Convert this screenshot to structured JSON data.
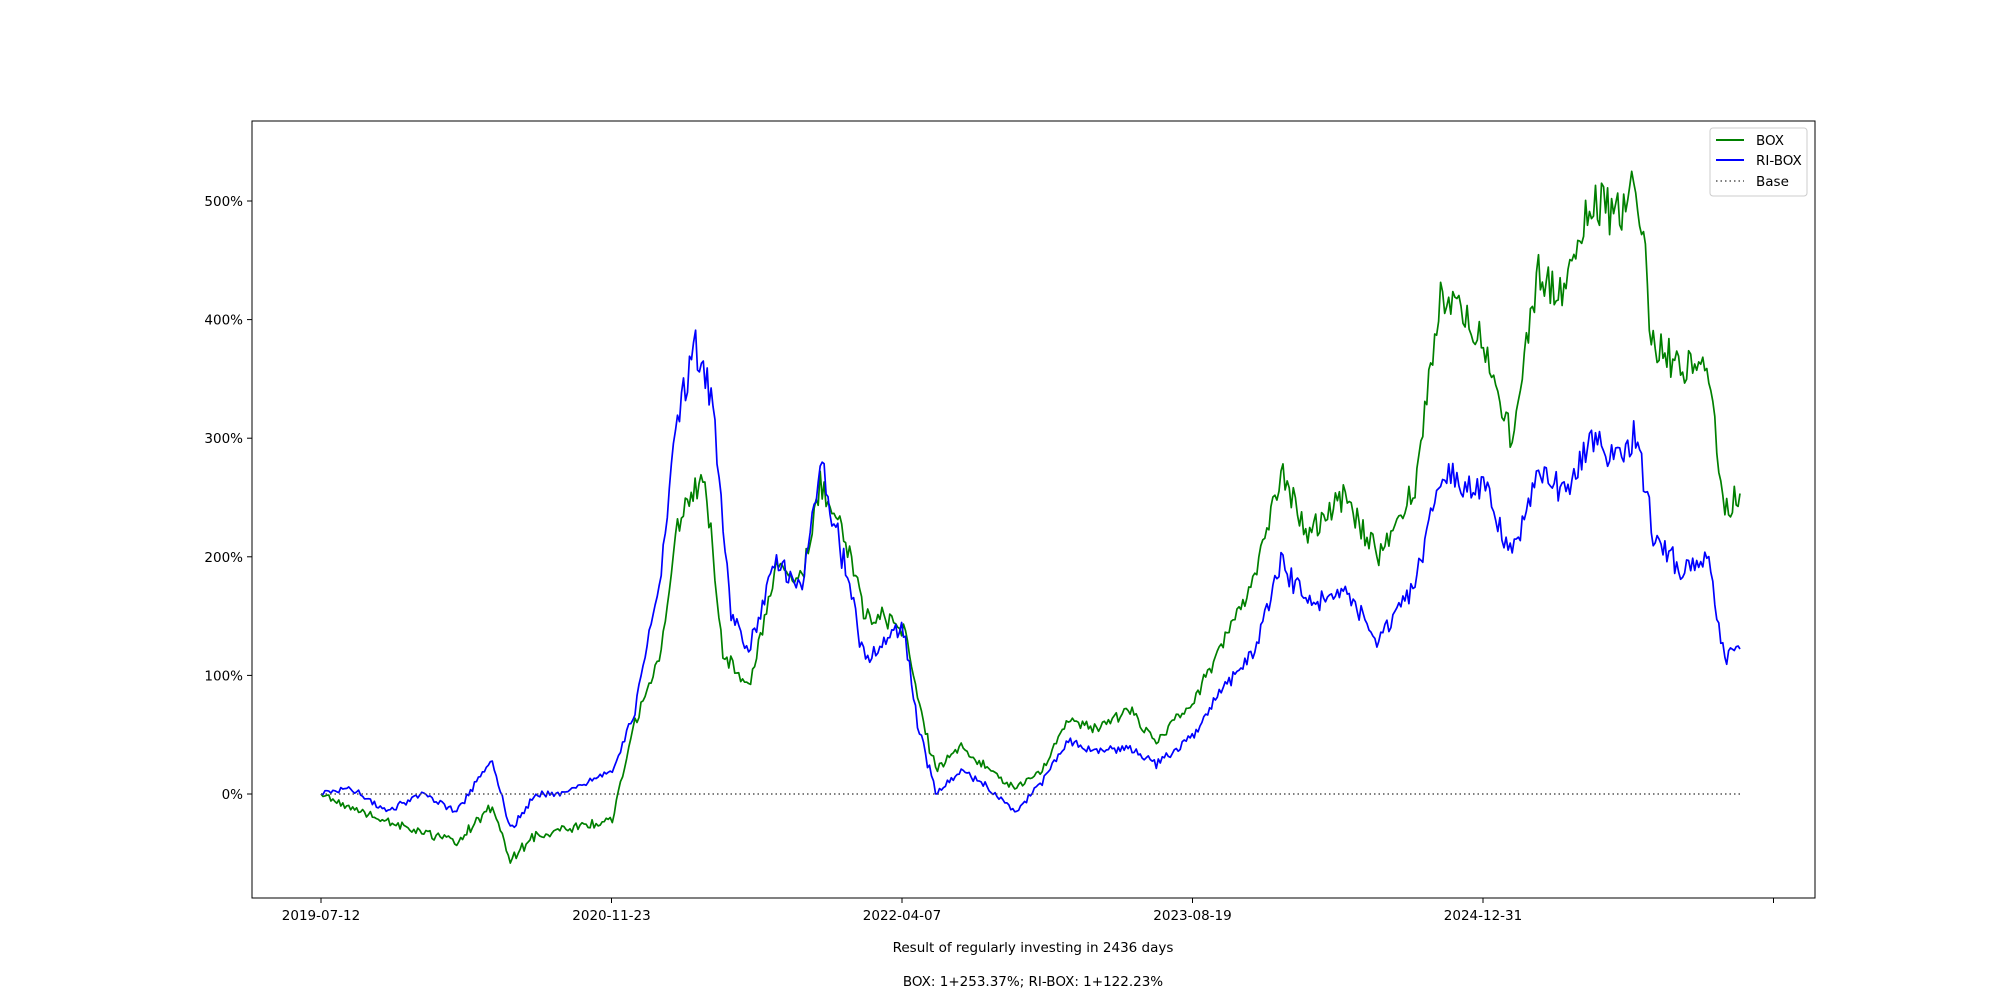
{
  "chart_data": {
    "type": "line",
    "title": "",
    "xlabel": "Result of regularly investing in 2436 days",
    "subtitle": "BOX: 1+253.37%; RI-BOX: 1+122.23%",
    "ylabel": "",
    "x_range": [
      "2019-07-12",
      "2026-03-13"
    ],
    "x_ticks": [
      "2019-07-12",
      "2020-11-23",
      "2022-04-07",
      "2023-08-19",
      "2024-12-31",
      ""
    ],
    "y_ticks": [
      0,
      100,
      200,
      300,
      400,
      500
    ],
    "y_tick_labels": [
      "0%",
      "100%",
      "200%",
      "300%",
      "400%",
      "500%"
    ],
    "ylim": [
      -85,
      567
    ],
    "grid": false,
    "legend": {
      "position": "top-right",
      "entries": [
        "BOX",
        "RI-BOX",
        "Base"
      ]
    },
    "series": [
      {
        "name": "BOX",
        "color": "#008000",
        "style": "solid",
        "points": [
          [
            "2019-07-12",
            0
          ],
          [
            "2019-09-01",
            -12
          ],
          [
            "2019-11-01",
            -22
          ],
          [
            "2020-01-01",
            -33
          ],
          [
            "2020-03-01",
            -40
          ],
          [
            "2020-05-01",
            -10
          ],
          [
            "2020-06-01",
            -55
          ],
          [
            "2020-07-15",
            -35
          ],
          [
            "2020-09-01",
            -30
          ],
          [
            "2020-11-23",
            -22
          ],
          [
            "2021-01-01",
            60
          ],
          [
            "2021-02-15",
            120
          ],
          [
            "2021-03-15",
            230
          ],
          [
            "2021-05-01",
            270
          ],
          [
            "2021-06-01",
            120
          ],
          [
            "2021-07-15",
            90
          ],
          [
            "2021-09-01",
            190
          ],
          [
            "2021-10-15",
            180
          ],
          [
            "2021-11-15",
            260
          ],
          [
            "2022-01-01",
            210
          ],
          [
            "2022-02-01",
            150
          ],
          [
            "2022-03-01",
            150
          ],
          [
            "2022-04-07",
            140
          ],
          [
            "2022-05-01",
            80
          ],
          [
            "2022-06-01",
            20
          ],
          [
            "2022-07-15",
            40
          ],
          [
            "2022-09-01",
            20
          ],
          [
            "2022-10-15",
            5
          ],
          [
            "2022-12-01",
            20
          ],
          [
            "2023-01-15",
            65
          ],
          [
            "2023-03-01",
            55
          ],
          [
            "2023-05-01",
            70
          ],
          [
            "2023-06-15",
            45
          ],
          [
            "2023-08-19",
            80
          ],
          [
            "2023-10-01",
            120
          ],
          [
            "2023-12-01",
            180
          ],
          [
            "2024-01-15",
            270
          ],
          [
            "2024-03-01",
            220
          ],
          [
            "2024-05-01",
            250
          ],
          [
            "2024-07-01",
            200
          ],
          [
            "2024-09-01",
            260
          ],
          [
            "2024-10-15",
            420
          ],
          [
            "2024-12-31",
            380
          ],
          [
            "2025-02-15",
            300
          ],
          [
            "2025-04-01",
            440
          ],
          [
            "2025-05-15",
            420
          ],
          [
            "2025-07-01",
            500
          ],
          [
            "2025-08-15",
            490
          ],
          [
            "2025-09-15",
            520
          ],
          [
            "2025-10-15",
            380
          ],
          [
            "2025-12-01",
            360
          ],
          [
            "2026-01-15",
            370
          ],
          [
            "2026-02-15",
            240
          ],
          [
            "2026-03-13",
            253.37
          ]
        ]
      },
      {
        "name": "RI-BOX",
        "color": "#0000ff",
        "style": "solid",
        "points": [
          [
            "2019-07-12",
            0
          ],
          [
            "2019-09-01",
            5
          ],
          [
            "2019-11-01",
            -15
          ],
          [
            "2020-01-01",
            0
          ],
          [
            "2020-03-01",
            -15
          ],
          [
            "2020-05-01",
            30
          ],
          [
            "2020-06-01",
            -30
          ],
          [
            "2020-07-15",
            0
          ],
          [
            "2020-09-01",
            0
          ],
          [
            "2020-11-23",
            20
          ],
          [
            "2021-01-01",
            70
          ],
          [
            "2021-02-15",
            190
          ],
          [
            "2021-03-15",
            320
          ],
          [
            "2021-04-15",
            375
          ],
          [
            "2021-05-15",
            330
          ],
          [
            "2021-06-15",
            150
          ],
          [
            "2021-07-15",
            120
          ],
          [
            "2021-09-01",
            200
          ],
          [
            "2021-10-15",
            170
          ],
          [
            "2021-11-15",
            280
          ],
          [
            "2022-01-01",
            180
          ],
          [
            "2022-02-01",
            110
          ],
          [
            "2022-03-01",
            130
          ],
          [
            "2022-04-07",
            140
          ],
          [
            "2022-05-01",
            60
          ],
          [
            "2022-06-01",
            0
          ],
          [
            "2022-07-15",
            20
          ],
          [
            "2022-09-01",
            5
          ],
          [
            "2022-10-15",
            -15
          ],
          [
            "2022-12-01",
            10
          ],
          [
            "2023-01-15",
            45
          ],
          [
            "2023-03-01",
            35
          ],
          [
            "2023-05-01",
            40
          ],
          [
            "2023-06-15",
            25
          ],
          [
            "2023-08-19",
            50
          ],
          [
            "2023-10-01",
            85
          ],
          [
            "2023-12-01",
            120
          ],
          [
            "2024-01-15",
            195
          ],
          [
            "2024-03-01",
            160
          ],
          [
            "2024-05-01",
            170
          ],
          [
            "2024-07-01",
            130
          ],
          [
            "2024-09-01",
            175
          ],
          [
            "2024-10-15",
            270
          ],
          [
            "2024-12-31",
            255
          ],
          [
            "2025-02-15",
            200
          ],
          [
            "2025-04-01",
            270
          ],
          [
            "2025-05-15",
            255
          ],
          [
            "2025-07-01",
            300
          ],
          [
            "2025-08-15",
            280
          ],
          [
            "2025-09-15",
            305
          ],
          [
            "2025-10-15",
            220
          ],
          [
            "2025-12-01",
            190
          ],
          [
            "2026-01-15",
            200
          ],
          [
            "2026-02-15",
            115
          ],
          [
            "2026-03-13",
            122.23
          ]
        ]
      },
      {
        "name": "Base",
        "color": "#555555",
        "style": "dotted",
        "points": [
          [
            "2019-07-12",
            0
          ],
          [
            "2026-03-13",
            0
          ]
        ]
      }
    ]
  }
}
